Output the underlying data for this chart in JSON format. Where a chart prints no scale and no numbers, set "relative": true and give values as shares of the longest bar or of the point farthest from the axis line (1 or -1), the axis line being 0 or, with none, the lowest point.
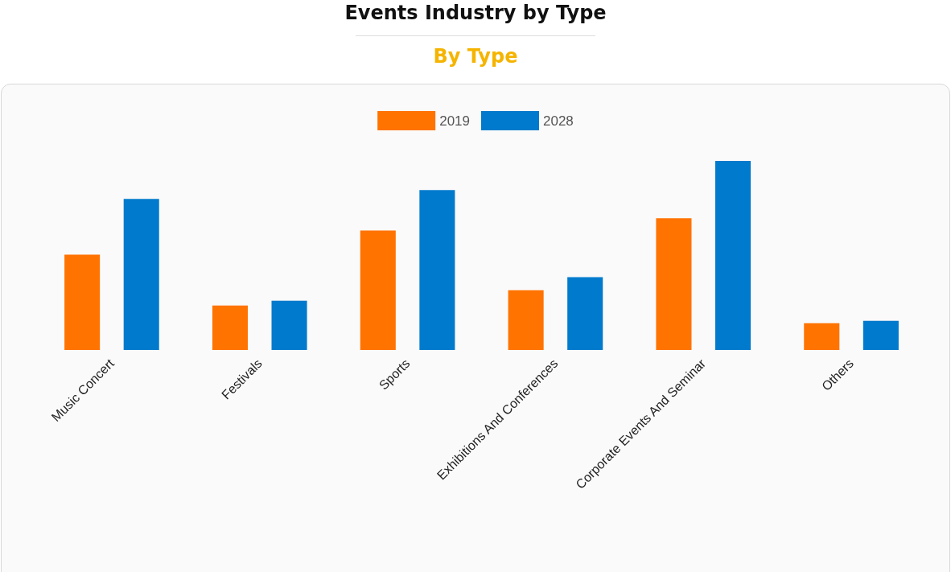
{
  "chart_data": {
    "type": "bar",
    "title": "Events Industry by Type",
    "subtitle": "By Type",
    "relative": true,
    "categories": [
      "Music Concert",
      "Festivals",
      "Sports",
      "Exhibitions And Conferences",
      "Corporate Events And Seminar",
      "Others"
    ],
    "series": [
      {
        "name": "2019",
        "color": "#ff7300",
        "values": [
          0.504,
          0.235,
          0.632,
          0.316,
          0.697,
          0.141
        ]
      },
      {
        "name": "2028",
        "color": "#007acc",
        "values": [
          0.799,
          0.261,
          0.846,
          0.385,
          1,
          0.154
        ]
      }
    ],
    "legend": "top"
  }
}
